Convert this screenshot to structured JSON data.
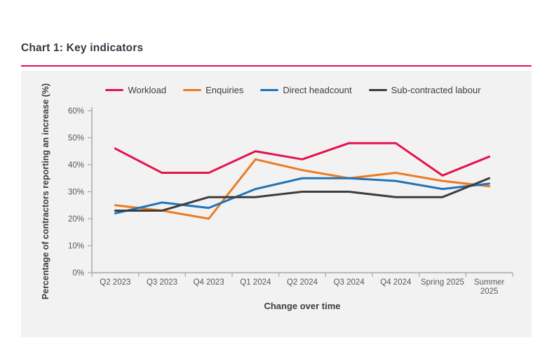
{
  "page": {
    "title": "Chart 1: Key indicators"
  },
  "colors": {
    "title_text": "#333a44",
    "divider_red": "#e4124d",
    "panel_background": "#f2f2f2",
    "axis_line": "#a8a8a8",
    "tick_text": "#595959",
    "axis_title_text": "#3d3d3d"
  },
  "chart_data": {
    "type": "line",
    "title": "Chart 1: Key indicators",
    "categories": [
      "Q2 2023",
      "Q3 2023",
      "Q4 2023",
      "Q1 2024",
      "Q2 2024",
      "Q3 2024",
      "Q4 2024",
      "Spring 2025",
      "Summer\n2025"
    ],
    "series": [
      {
        "name": "Workload",
        "color": "#e4124d",
        "values": [
          46,
          37,
          37,
          45,
          42,
          48,
          48,
          36,
          43
        ]
      },
      {
        "name": "Enquiries",
        "color": "#ec7b20",
        "values": [
          25,
          23,
          20,
          42,
          38,
          35,
          37,
          34,
          32
        ]
      },
      {
        "name": "Direct headcount",
        "color": "#2273b8",
        "values": [
          22,
          26,
          24,
          31,
          35,
          35,
          34,
          31,
          33
        ]
      },
      {
        "name": "Sub-contracted labour",
        "color": "#3d3d3d",
        "values": [
          23,
          23,
          28,
          28,
          30,
          30,
          28,
          28,
          35
        ]
      }
    ],
    "xlabel": "Change over time",
    "ylabel": "Percentage of contractors reporting an increase (%)",
    "ylim": [
      0,
      60
    ],
    "y_ticks": [
      {
        "value": 0,
        "label": "0%"
      },
      {
        "value": 10,
        "label": "10%"
      },
      {
        "value": 20,
        "label": "20%"
      },
      {
        "value": 30,
        "label": "30%"
      },
      {
        "value": 40,
        "label": "40%"
      },
      {
        "value": 50,
        "label": "50%"
      },
      {
        "value": 60,
        "label": "60%"
      }
    ],
    "legend_position": "top",
    "grid": false
  }
}
